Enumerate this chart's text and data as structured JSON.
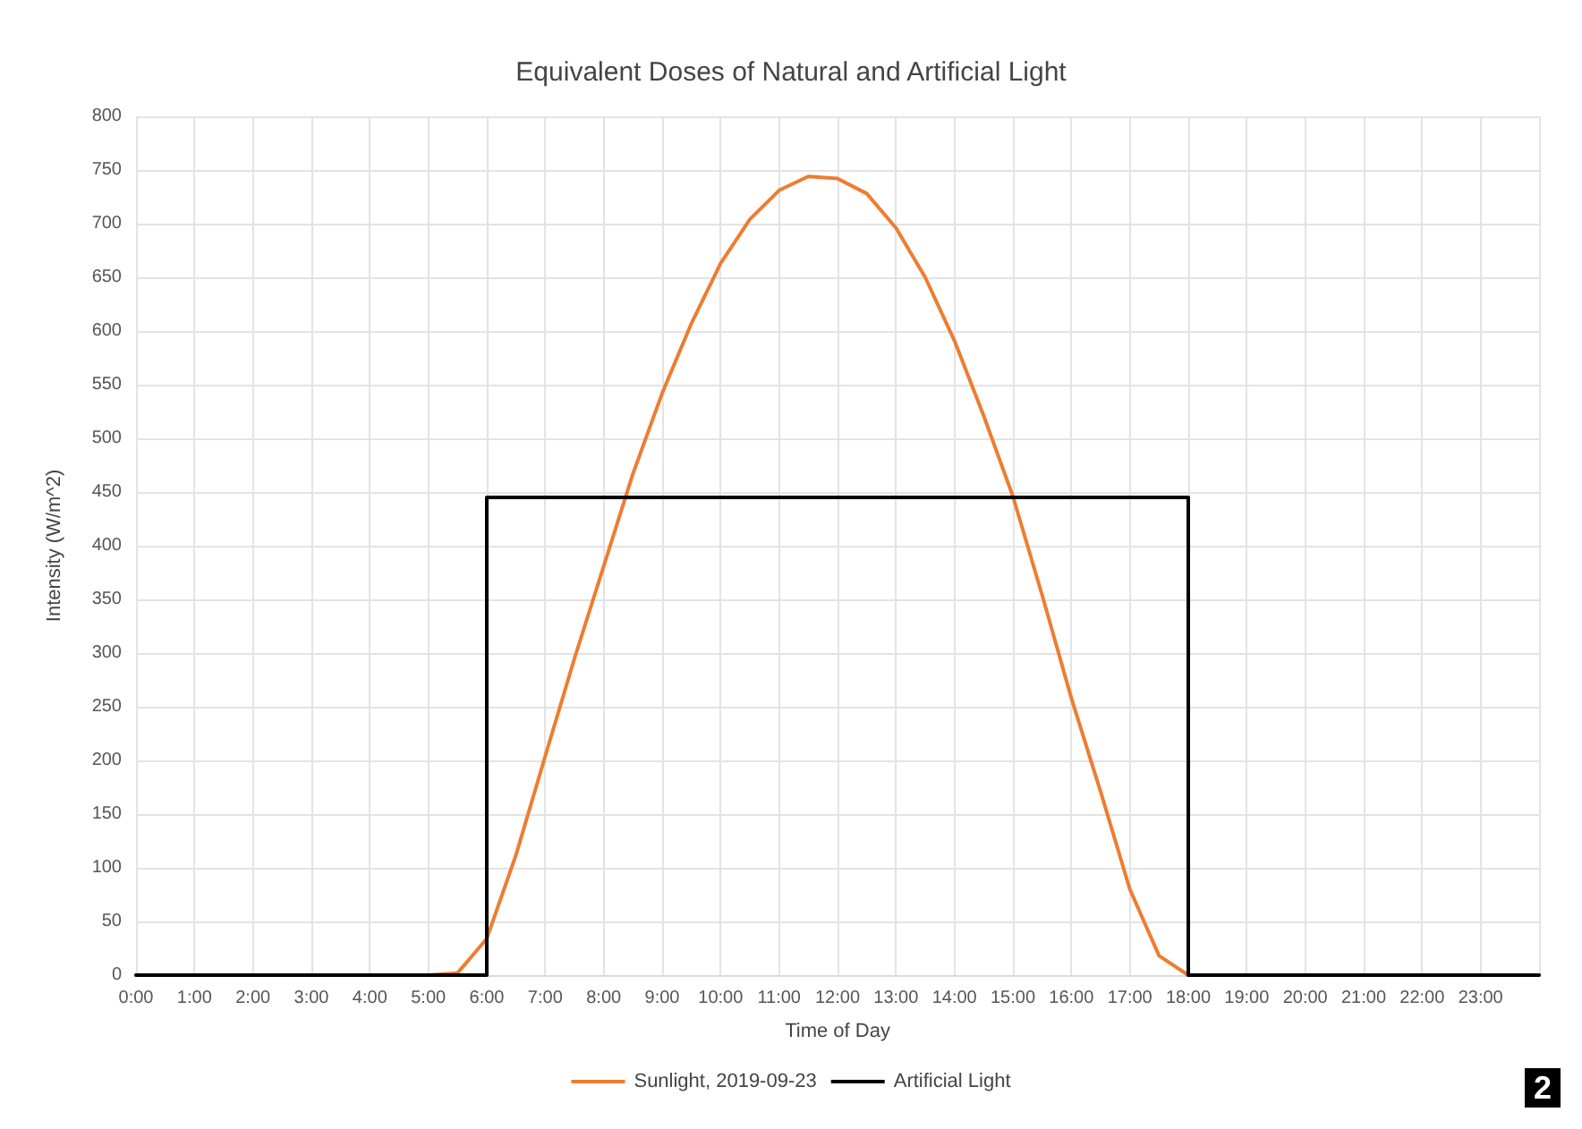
{
  "chart_data": {
    "type": "line",
    "title": "Equivalent Doses of Natural and Artificial Light",
    "xlabel": "Time of Day",
    "ylabel": "Intensity (W/m^2)",
    "series": [
      {
        "name": "Sunlight, 2019-09-23",
        "color": "#ed7d31",
        "x": [
          0,
          5,
          5.5,
          6,
          6.5,
          7,
          7.5,
          8,
          8.5,
          9,
          9.5,
          10,
          10.5,
          11,
          11.5,
          12,
          12.5,
          13,
          13.5,
          14,
          14.5,
          15,
          15.5,
          16,
          16.5,
          17,
          17.5,
          18,
          24
        ],
        "values": [
          0,
          0,
          2,
          34,
          112,
          204,
          295,
          381,
          467,
          542,
          607,
          663,
          704,
          731,
          744,
          742,
          728,
          696,
          650,
          591,
          521,
          446,
          354,
          258,
          171,
          80,
          18,
          0,
          0
        ]
      },
      {
        "name": "Artificial Light",
        "color": "#000000",
        "x": [
          0,
          6,
          6,
          18,
          18,
          24
        ],
        "values": [
          0,
          0,
          445,
          445,
          0,
          0
        ]
      }
    ],
    "xlim": [
      0,
      24
    ],
    "xticks": [
      {
        "value": 0,
        "label": "0:00"
      },
      {
        "value": 1,
        "label": "1:00"
      },
      {
        "value": 2,
        "label": "2:00"
      },
      {
        "value": 3,
        "label": "3:00"
      },
      {
        "value": 4,
        "label": "4:00"
      },
      {
        "value": 5,
        "label": "5:00"
      },
      {
        "value": 6,
        "label": "6:00"
      },
      {
        "value": 7,
        "label": "7:00"
      },
      {
        "value": 8,
        "label": "8:00"
      },
      {
        "value": 9,
        "label": "9:00"
      },
      {
        "value": 10,
        "label": "10:00"
      },
      {
        "value": 11,
        "label": "11:00"
      },
      {
        "value": 12,
        "label": "12:00"
      },
      {
        "value": 13,
        "label": "13:00"
      },
      {
        "value": 14,
        "label": "14:00"
      },
      {
        "value": 15,
        "label": "15:00"
      },
      {
        "value": 16,
        "label": "16:00"
      },
      {
        "value": 17,
        "label": "17:00"
      },
      {
        "value": 18,
        "label": "18:00"
      },
      {
        "value": 19,
        "label": "19:00"
      },
      {
        "value": 20,
        "label": "20:00"
      },
      {
        "value": 21,
        "label": "21:00"
      },
      {
        "value": 22,
        "label": "22:00"
      },
      {
        "value": 23,
        "label": "23:00"
      },
      {
        "value": 24,
        "label": null
      }
    ],
    "ylim": [
      0,
      800
    ],
    "yticks": [
      0,
      50,
      100,
      150,
      200,
      250,
      300,
      350,
      400,
      450,
      500,
      550,
      600,
      650,
      700,
      750,
      800
    ],
    "grid": true,
    "legend": "bottom",
    "marker": "none",
    "line_style": "solid",
    "annotations": [
      "2"
    ]
  }
}
